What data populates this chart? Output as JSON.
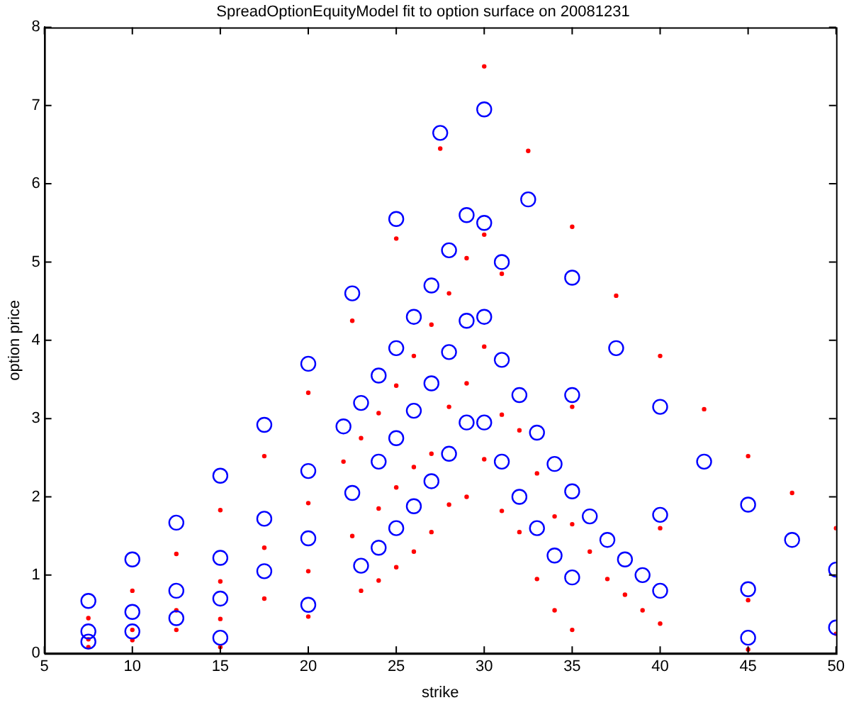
{
  "chart_data": {
    "type": "scatter",
    "title": "SpreadOptionEquityModel fit to option surface on 20081231",
    "xlabel": "strike",
    "ylabel": "option price",
    "xlim": [
      5,
      50
    ],
    "xticks": [
      5,
      10,
      15,
      20,
      25,
      30,
      35,
      40,
      45,
      50
    ],
    "ylim": [
      0,
      8
    ],
    "yticks": [
      0,
      1,
      2,
      3,
      4,
      5,
      6,
      7,
      8
    ],
    "grid": false,
    "legend": false,
    "marker": "circle",
    "series": [
      {
        "color": "#0000ff",
        "x": [
          7.5,
          7.5,
          7.5,
          10,
          10,
          10,
          12.5,
          12.5,
          12.5,
          15,
          15,
          15,
          15,
          17.5,
          17.5,
          17.5,
          20,
          20,
          20,
          20,
          22,
          22.5,
          22.5,
          23,
          23,
          24,
          24,
          24,
          25,
          25,
          25,
          25,
          26,
          26,
          26,
          27,
          27,
          27,
          27.5,
          28,
          28,
          28,
          29,
          29,
          29,
          30,
          30,
          30,
          30,
          31,
          31,
          31,
          32,
          32,
          32.5,
          33,
          33,
          34,
          34,
          35,
          35,
          35,
          35,
          36,
          37,
          37.5,
          38,
          39,
          40,
          40,
          40,
          42.5,
          45,
          45,
          45,
          47.5,
          50,
          50
        ],
        "values": [
          0.67,
          0.28,
          0.15,
          1.2,
          0.53,
          0.28,
          1.67,
          0.8,
          0.45,
          2.27,
          1.22,
          0.7,
          0.2,
          2.92,
          1.72,
          1.05,
          3.7,
          2.33,
          1.47,
          0.62,
          2.9,
          4.6,
          2.05,
          3.2,
          1.12,
          3.55,
          2.45,
          1.35,
          5.55,
          3.9,
          2.75,
          1.6,
          4.3,
          3.1,
          1.88,
          4.7,
          3.45,
          2.2,
          6.65,
          5.15,
          3.85,
          2.55,
          5.6,
          4.25,
          2.95,
          6.95,
          5.5,
          4.3,
          2.95,
          5.0,
          3.75,
          2.45,
          3.3,
          2.0,
          5.8,
          2.82,
          1.6,
          2.42,
          1.25,
          4.8,
          3.3,
          2.07,
          0.97,
          1.75,
          1.45,
          3.9,
          1.2,
          1.0,
          3.15,
          1.77,
          0.8,
          2.45,
          1.9,
          0.82,
          0.2,
          1.45,
          1.07,
          0.33
        ]
      },
      {
        "color": "#ff0000",
        "x": [
          7.5,
          7.5,
          7.5,
          10,
          10,
          10,
          12.5,
          12.5,
          12.5,
          15,
          15,
          15,
          15,
          17.5,
          17.5,
          17.5,
          20,
          20,
          20,
          20,
          22,
          22.5,
          22.5,
          23,
          23,
          24,
          24,
          24,
          25,
          25,
          25,
          25,
          26,
          26,
          26,
          27,
          27,
          27,
          27.5,
          28,
          28,
          28,
          29,
          29,
          29,
          30,
          30,
          30,
          30,
          31,
          31,
          31,
          32,
          32,
          32.5,
          33,
          33,
          34,
          34,
          35,
          35,
          35,
          35,
          36,
          37,
          37.5,
          38,
          39,
          40,
          40,
          40,
          42.5,
          45,
          45,
          45,
          47.5,
          50,
          50
        ],
        "values": [
          0.45,
          0.18,
          0.08,
          0.8,
          0.3,
          0.17,
          1.27,
          0.55,
          0.3,
          1.83,
          0.92,
          0.44,
          0.08,
          2.52,
          1.35,
          0.7,
          3.33,
          1.92,
          1.05,
          0.47,
          2.45,
          4.25,
          1.5,
          2.75,
          0.8,
          3.07,
          1.85,
          0.93,
          5.3,
          3.42,
          2.12,
          1.1,
          3.8,
          2.38,
          1.3,
          4.2,
          2.55,
          1.55,
          6.45,
          4.6,
          3.15,
          1.9,
          5.05,
          3.45,
          2.0,
          7.5,
          5.35,
          3.92,
          2.48,
          4.85,
          3.05,
          1.82,
          2.85,
          1.55,
          6.42,
          2.3,
          0.95,
          1.75,
          0.55,
          5.45,
          3.15,
          1.65,
          0.3,
          1.3,
          0.95,
          4.57,
          0.75,
          0.55,
          3.8,
          1.6,
          0.38,
          3.12,
          2.52,
          0.68,
          0.05,
          2.05,
          1.6,
          0.25
        ]
      }
    ]
  }
}
